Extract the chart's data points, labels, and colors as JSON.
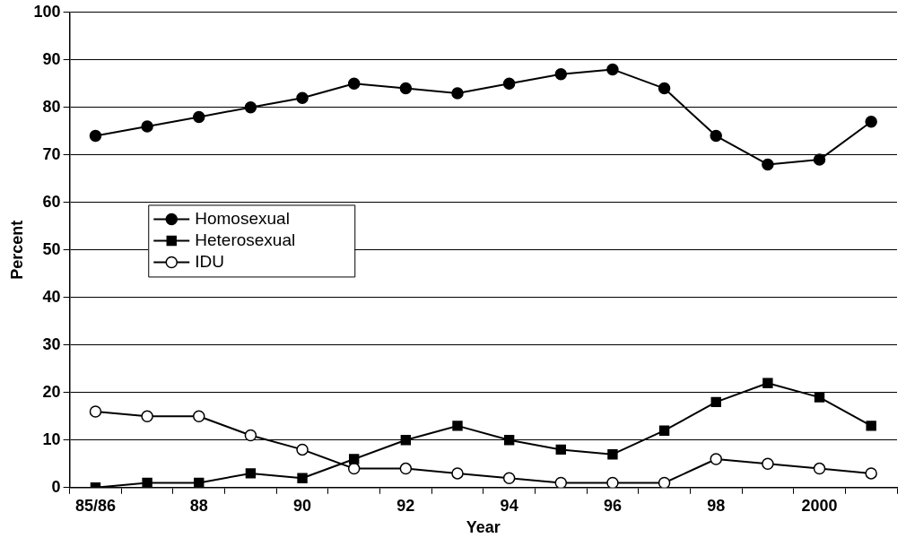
{
  "chart_data": {
    "type": "line",
    "xlabel": "Year",
    "ylabel": "Percent",
    "categories": [
      "85/86",
      null,
      "88",
      null,
      "90",
      null,
      "92",
      null,
      "94",
      null,
      "96",
      null,
      "98",
      null,
      "2000",
      null
    ],
    "series": [
      {
        "name": "Homosexual",
        "color": "#000000",
        "marker": "circle",
        "values": [
          74,
          76,
          78,
          80,
          82,
          85,
          84,
          83,
          85,
          87,
          88,
          84,
          74,
          68,
          69,
          77
        ]
      },
      {
        "name": "Heterosexual",
        "color": "#000000",
        "marker": "square",
        "values": [
          0,
          1,
          1,
          3,
          2,
          6,
          10,
          13,
          10,
          8,
          7,
          12,
          18,
          22,
          19,
          13
        ]
      },
      {
        "name": "IDU",
        "color": "#000000",
        "marker": "circle-open",
        "values": [
          16,
          15,
          15,
          11,
          8,
          4,
          4,
          3,
          2,
          1,
          1,
          1,
          6,
          5,
          4,
          3
        ]
      }
    ],
    "ylim": [
      0,
      100
    ],
    "yticks": [
      0,
      10,
      20,
      30,
      40,
      50,
      60,
      70,
      80,
      90,
      100
    ],
    "grid": "y",
    "legend": "left",
    "line_style": "solid"
  }
}
